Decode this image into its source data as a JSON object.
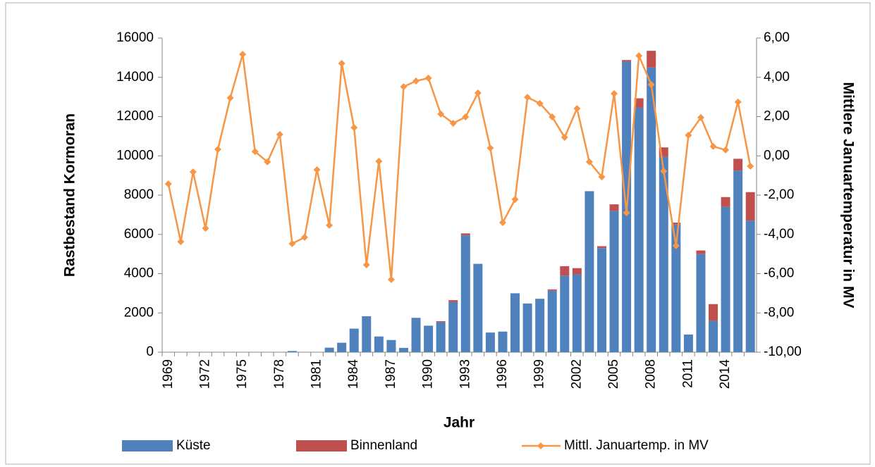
{
  "chart_data": {
    "type": "bar",
    "x_label": "Jahr",
    "y_label": "Rastbestand Kormoran",
    "y2_label": "Mittlere Januartemperatur in MV",
    "categories": [
      "1969",
      null,
      null,
      "1972",
      null,
      null,
      "1975",
      null,
      null,
      "1978",
      null,
      null,
      "1981",
      null,
      null,
      "1984",
      null,
      null,
      "1987",
      null,
      null,
      "1990",
      null,
      null,
      "1993",
      null,
      null,
      "1996",
      null,
      null,
      "1999",
      null,
      null,
      "2002",
      null,
      null,
      "2005",
      null,
      null,
      "2008",
      null,
      null,
      "2011",
      null,
      null,
      "2014",
      null,
      null
    ],
    "series": [
      {
        "name": "Küste",
        "color": "#4f81bd",
        "type": "bar",
        "values": [
          0,
          0,
          0,
          0,
          0,
          0,
          0,
          0,
          0,
          0,
          60,
          0,
          0,
          230,
          480,
          1200,
          1830,
          800,
          620,
          220,
          1750,
          1350,
          1530,
          2550,
          5950,
          4500,
          1000,
          1050,
          3000,
          2480,
          2720,
          3130,
          3900,
          3950,
          8200,
          5300,
          7200,
          14800,
          12450,
          14500,
          9950,
          6500,
          900,
          5000,
          1600,
          7400,
          9250,
          6700
        ]
      },
      {
        "name": "Binnenland",
        "color": "#c0504d",
        "type": "bar",
        "values": [
          0,
          0,
          0,
          0,
          0,
          0,
          0,
          0,
          0,
          0,
          0,
          0,
          0,
          0,
          0,
          0,
          0,
          0,
          0,
          0,
          0,
          0,
          50,
          100,
          100,
          0,
          0,
          0,
          0,
          0,
          0,
          70,
          480,
          330,
          0,
          100,
          330,
          80,
          480,
          850,
          480,
          100,
          0,
          180,
          850,
          500,
          600,
          1450
        ]
      },
      {
        "name": "Mittl. Januartemp. in MV",
        "color": "#f79646",
        "type": "line",
        "axis": "y2",
        "values": [
          -1.43,
          -4.37,
          -0.82,
          -3.69,
          0.33,
          2.95,
          5.17,
          0.22,
          -0.31,
          1.09,
          -4.47,
          -4.15,
          -0.71,
          -3.54,
          4.71,
          1.44,
          -5.55,
          -0.28,
          -6.3,
          3.52,
          3.81,
          3.96,
          2.13,
          1.66,
          1.98,
          3.2,
          0.4,
          -3.4,
          -2.22,
          2.98,
          2.67,
          1.98,
          0.94,
          2.41,
          -0.31,
          -1.07,
          3.17,
          -2.9,
          5.1,
          3.63,
          -0.78,
          -4.58,
          1.05,
          1.95,
          0.48,
          0.3,
          2.74,
          -0.53
        ]
      }
    ],
    "ylim": [
      0,
      16000
    ],
    "yticks": [
      0,
      2000,
      4000,
      6000,
      8000,
      10000,
      12000,
      14000,
      16000
    ],
    "y2lim": [
      -10,
      6
    ],
    "y2ticks": [
      {
        "value": -10,
        "label": "-10,00"
      },
      {
        "value": -8,
        "label": "-8,00"
      },
      {
        "value": -6,
        "label": "-6,00"
      },
      {
        "value": -4,
        "label": "-4,00"
      },
      {
        "value": -2,
        "label": "-2,00"
      },
      {
        "value": 0,
        "label": "0,00"
      },
      {
        "value": 2,
        "label": "2,00"
      },
      {
        "value": 4,
        "label": "4,00"
      },
      {
        "value": 6,
        "label": "6,00"
      }
    ],
    "stacked": true,
    "grid": false,
    "legend": "bottom"
  }
}
